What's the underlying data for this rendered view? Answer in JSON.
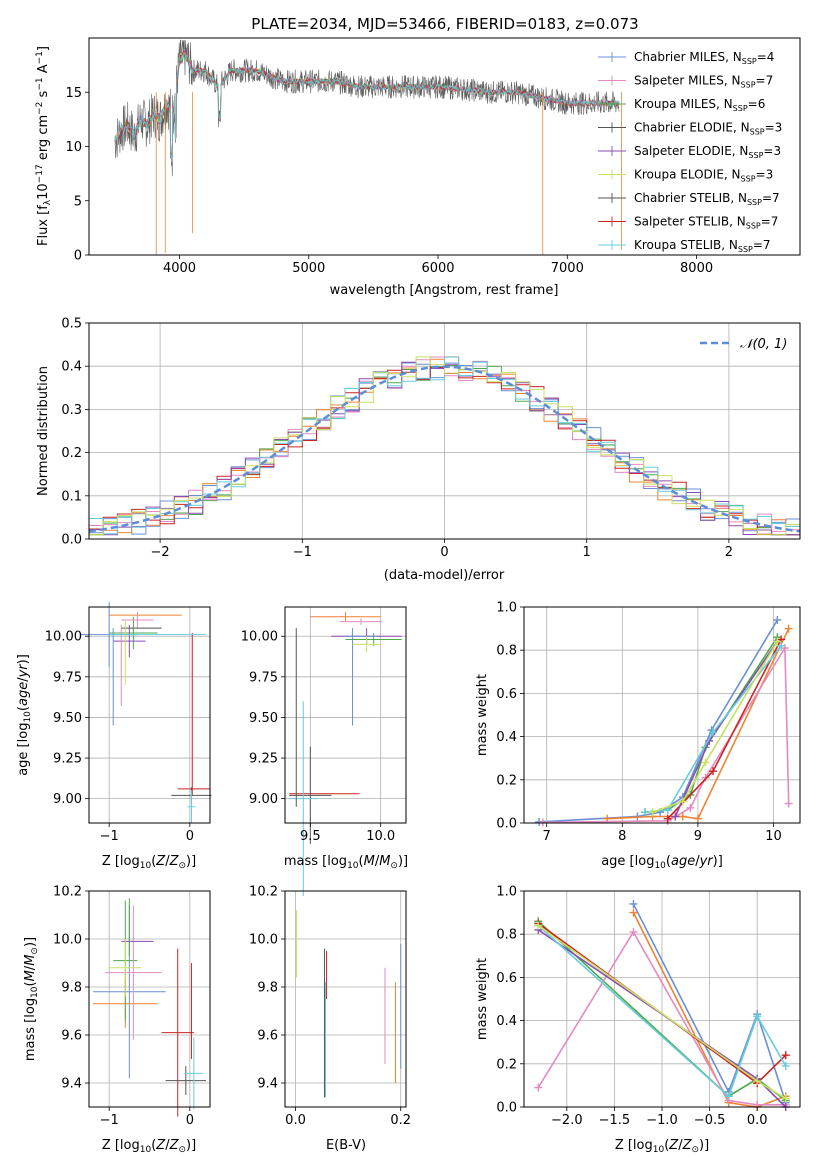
{
  "chart_data": [
    {
      "type": "line",
      "title": "PLATE=2034, MJD=53466, FIBERID=0183, z=0.073",
      "xlabel": "wavelength [Angstrom, rest frame]",
      "ylabel": "Flux [f_λ10^-17 erg cm^-2 s^-1 A^-1]",
      "xlim": [
        3300,
        8800
      ],
      "ylim": [
        0,
        20
      ],
      "xticks": [
        "4000",
        "5000",
        "6000",
        "7000",
        "8000"
      ],
      "yticks": [
        "0",
        "5",
        "10",
        "15"
      ],
      "legend_position": "upper-right",
      "legend": [
        {
          "label": "Chabrier MILES, N",
          "sub": "SSP",
          "tail": "=4"
        },
        {
          "label": "Salpeter MILES, N",
          "sub": "SSP",
          "tail": "=7"
        },
        {
          "label": "Kroupa MILES, N",
          "sub": "SSP",
          "tail": "=6"
        },
        {
          "label": "Chabrier ELODIE, N",
          "sub": "SSP",
          "tail": "=3"
        },
        {
          "label": "Salpeter ELODIE, N",
          "sub": "SSP",
          "tail": "=3"
        },
        {
          "label": "Kroupa ELODIE, N",
          "sub": "SSP",
          "tail": "=3"
        },
        {
          "label": "Chabrier STELIB, N",
          "sub": "SSP",
          "tail": "=7"
        },
        {
          "label": "Salpeter STELIB, N",
          "sub": "SSP",
          "tail": "=7"
        },
        {
          "label": "Kroupa STELIB, N",
          "sub": "SSP",
          "tail": "=7"
        }
      ],
      "spectrum_points": [
        [
          3500,
          10.5
        ],
        [
          3550,
          11.5
        ],
        [
          3600,
          12.0
        ],
        [
          3650,
          11.0
        ],
        [
          3700,
          12.5
        ],
        [
          3750,
          12.0
        ],
        [
          3800,
          13.0
        ],
        [
          3850,
          12.5
        ],
        [
          3900,
          14.0
        ],
        [
          3950,
          13.0
        ],
        [
          4000,
          18.0
        ],
        [
          4050,
          18.5
        ],
        [
          4100,
          17.0
        ],
        [
          4200,
          17.0
        ],
        [
          4300,
          15.5
        ],
        [
          4400,
          17.0
        ],
        [
          4500,
          17.0
        ],
        [
          4600,
          17.0
        ],
        [
          4700,
          16.5
        ],
        [
          4800,
          16.0
        ],
        [
          4900,
          16.0
        ],
        [
          5000,
          16.0
        ],
        [
          5200,
          16.0
        ],
        [
          5400,
          15.5
        ],
        [
          5600,
          15.5
        ],
        [
          5800,
          15.5
        ],
        [
          6000,
          15.5
        ],
        [
          6200,
          15.3
        ],
        [
          6400,
          15.0
        ],
        [
          6600,
          15.0
        ],
        [
          6800,
          14.5
        ],
        [
          7000,
          14.0
        ],
        [
          7200,
          14.0
        ],
        [
          7400,
          14.0
        ]
      ]
    },
    {
      "type": "bar",
      "xlabel": "(data-model)/error",
      "ylabel": "Normed distribution",
      "xlim": [
        -2.5,
        2.5
      ],
      "ylim": [
        0,
        0.5
      ],
      "xticks": [
        "−2",
        "−1",
        "0",
        "1",
        "2"
      ],
      "yticks": [
        "0.0",
        "0.1",
        "0.2",
        "0.3",
        "0.4",
        "0.5"
      ],
      "legend_label": "𝒩(0, 1)",
      "legend_position": "upper-right",
      "bin_edges": [
        -2.5,
        -2.4,
        -2.3,
        -2.2,
        -2.1,
        -2.0,
        -1.9,
        -1.8,
        -1.7,
        -1.6,
        -1.5,
        -1.4,
        -1.3,
        -1.2,
        -1.1,
        -1.0,
        -0.9,
        -0.8,
        -0.7,
        -0.6,
        -0.5,
        -0.4,
        -0.3,
        -0.2,
        -0.1,
        0.0,
        0.1,
        0.2,
        0.3,
        0.4,
        0.5,
        0.6,
        0.7,
        0.8,
        0.9,
        1.0,
        1.1,
        1.2,
        1.3,
        1.4,
        1.5,
        1.6,
        1.7,
        1.8,
        1.9,
        2.0,
        2.1,
        2.2,
        2.3,
        2.4,
        2.5
      ],
      "hist_peak": 0.48
    },
    {
      "type": "scatter",
      "xlabel": "Z [log10(Z/Z⊙)]",
      "ylabel": "age  [log10(age/yr)]",
      "xlim": [
        -1.25,
        0.25
      ],
      "ylim": [
        8.85,
        10.18
      ],
      "xticks": [
        "−1",
        "0"
      ],
      "yticks": [
        "9.00",
        "9.25",
        "9.50",
        "9.75",
        "10.00"
      ]
    },
    {
      "type": "scatter",
      "xlabel": "mass [log10(M/M⊙)]",
      "ylabel": "",
      "xlim": [
        9.32,
        10.18
      ],
      "ylim": [
        8.85,
        10.18
      ],
      "xticks": [
        "9.5",
        "10.0"
      ],
      "yticks": [
        "9.00",
        "9.25",
        "9.50",
        "9.75",
        "10.00"
      ]
    },
    {
      "type": "line",
      "xlabel": "age  [log10(age/yr)]",
      "ylabel": "mass weight",
      "xlim": [
        6.7,
        10.35
      ],
      "ylim": [
        0,
        1
      ],
      "xticks": [
        "7",
        "8",
        "9",
        "10"
      ],
      "yticks": [
        "0.0",
        "0.2",
        "0.4",
        "0.6",
        "0.8",
        "1.0"
      ],
      "series": [
        {
          "color": "#6a8fd4",
          "x": [
            6.9,
            8.2,
            8.5,
            8.8,
            9.18,
            10.05
          ],
          "y": [
            0.005,
            0.03,
            0.05,
            0.12,
            0.43,
            0.94
          ]
        },
        {
          "color": "#ee8433",
          "x": [
            7.8,
            8.4,
            8.8,
            9.0,
            10.2
          ],
          "y": [
            0.02,
            0.03,
            0.03,
            0.02,
            0.9
          ]
        },
        {
          "color": "#4caa4c",
          "x": [
            8.3,
            8.6,
            8.9,
            9.1,
            10.05
          ],
          "y": [
            0.05,
            0.06,
            0.13,
            0.35,
            0.86
          ]
        },
        {
          "color": "#e58ac0",
          "x": [
            6.95,
            8.6,
            8.9,
            9.1,
            10.15,
            10.2
          ],
          "y": [
            0.003,
            0.01,
            0.07,
            0.21,
            0.81,
            0.09
          ]
        },
        {
          "color": "#cc2222",
          "x": [
            8.6,
            9.2,
            10.1
          ],
          "y": [
            0.02,
            0.24,
            0.85
          ]
        },
        {
          "color": "#8a4db3",
          "x": [
            8.7,
            9.15,
            10.05
          ],
          "y": [
            0.03,
            0.38,
            0.84
          ]
        },
        {
          "color": "#66ccdd",
          "x": [
            8.3,
            8.6,
            9.2,
            10.1
          ],
          "y": [
            0.05,
            0.06,
            0.42,
            0.82
          ]
        },
        {
          "color": "#c8e060",
          "x": [
            8.4,
            8.8,
            9.1,
            10.05
          ],
          "y": [
            0.05,
            0.1,
            0.28,
            0.84
          ]
        }
      ]
    },
    {
      "type": "scatter",
      "xlabel": "Z [log10(Z/Z⊙)]",
      "ylabel": "mass [log10(M/M⊙)]",
      "xlim": [
        -1.25,
        0.25
      ],
      "ylim": [
        9.3,
        10.2
      ],
      "xticks": [
        "−1",
        "0"
      ],
      "yticks": [
        "9.4",
        "9.6",
        "9.8",
        "10.0",
        "10.2"
      ]
    },
    {
      "type": "scatter",
      "xlabel": "E(B-V)",
      "ylabel": "",
      "xlim": [
        -0.02,
        0.21
      ],
      "ylim": [
        9.3,
        10.2
      ],
      "xticks": [
        "0.0",
        "0.2"
      ],
      "yticks": [
        "9.4",
        "9.6",
        "9.8",
        "10.0",
        "10.2"
      ]
    },
    {
      "type": "line",
      "xlabel": "Z [log10(Z/Z⊙)]",
      "ylabel": "mass weight",
      "xlim": [
        -2.45,
        0.45
      ],
      "ylim": [
        0,
        1
      ],
      "xticks": [
        "−2.0",
        "−1.5",
        "−1.0",
        "−0.5",
        "0.0"
      ],
      "yticks": [
        "0.0",
        "0.2",
        "0.4",
        "0.6",
        "0.8",
        "1.0"
      ],
      "series": [
        {
          "color": "#6a8fd4",
          "x": [
            -1.3,
            -0.3,
            0.0,
            0.3
          ],
          "y": [
            0.94,
            0.07,
            0.43,
            0.02
          ]
        },
        {
          "color": "#ee8433",
          "x": [
            -1.3,
            -0.3,
            0.0,
            0.3
          ],
          "y": [
            0.9,
            0.02,
            0.0,
            0.05
          ]
        },
        {
          "color": "#4caa4c",
          "x": [
            -2.3,
            -0.3,
            0.0,
            0.3
          ],
          "y": [
            0.86,
            0.05,
            0.13,
            0.03
          ]
        },
        {
          "color": "#e58ac0",
          "x": [
            -2.3,
            -1.3,
            -0.3,
            0.0,
            0.3
          ],
          "y": [
            0.09,
            0.81,
            0.03,
            0.01,
            0.01
          ]
        },
        {
          "color": "#cc2222",
          "x": [
            -2.3,
            0.0,
            0.3
          ],
          "y": [
            0.85,
            0.11,
            0.24
          ]
        },
        {
          "color": "#8a4db3",
          "x": [
            -2.3,
            0.0,
            0.3
          ],
          "y": [
            0.82,
            0.13,
            0.0
          ]
        },
        {
          "color": "#66ccdd",
          "x": [
            -2.3,
            -0.3,
            0.0,
            0.3
          ],
          "y": [
            0.84,
            0.05,
            0.42,
            0.19
          ]
        },
        {
          "color": "#c8e060",
          "x": [
            -2.3,
            0.0,
            0.3
          ],
          "y": [
            0.84,
            0.12,
            0.04
          ]
        }
      ]
    }
  ],
  "colors": {
    "blue": "#6a8fd4",
    "orange": "#ee8433",
    "green": "#4caa4c",
    "pink": "#e58ac0",
    "red": "#cc2222",
    "purple": "#8a4db3",
    "cyan": "#66ccdd",
    "lime": "#c8e060",
    "gray": "#555555",
    "normal_curve": "#5b8dd9"
  }
}
